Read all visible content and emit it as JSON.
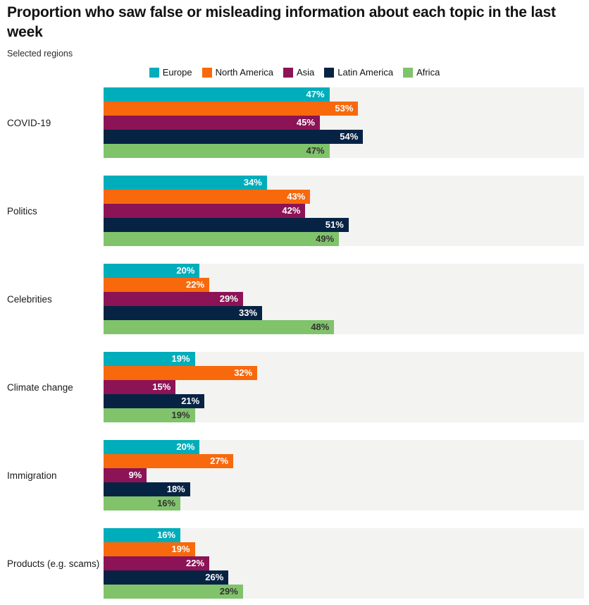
{
  "header": {
    "title": "Proportion who saw false or misleading information about each topic in the last week",
    "subtitle": "Selected regions"
  },
  "colors": {
    "plot_band_background": "#f3f3f1",
    "page_background": "#ffffff",
    "title_text": "#111111",
    "category_label_text": "#1a1a1a",
    "bar_label_light": "#ffffff",
    "bar_label_dark": "#333333"
  },
  "chart_data": {
    "type": "bar",
    "orientation": "horizontal",
    "title": "Proportion who saw false or misleading information about each topic in the last week",
    "subtitle": "Selected regions",
    "xlabel": "",
    "ylabel": "",
    "xlim": [
      0,
      100
    ],
    "value_suffix": "%",
    "grid": false,
    "legend_position": "top-center",
    "categories": [
      "COVID-19",
      "Politics",
      "Celebrities",
      "Climate change",
      "Immigration",
      "Products (e.g. scams)"
    ],
    "series": [
      {
        "name": "Europe",
        "color": "#00adba",
        "label_color": "#ffffff",
        "values": [
          47,
          34,
          20,
          19,
          20,
          16
        ]
      },
      {
        "name": "North America",
        "color": "#f8690d",
        "label_color": "#ffffff",
        "values": [
          53,
          43,
          22,
          32,
          27,
          19
        ]
      },
      {
        "name": "Asia",
        "color": "#8b1356",
        "label_color": "#ffffff",
        "values": [
          45,
          42,
          29,
          15,
          9,
          22
        ]
      },
      {
        "name": "Latin America",
        "color": "#072344",
        "label_color": "#ffffff",
        "values": [
          54,
          51,
          33,
          21,
          18,
          26
        ]
      },
      {
        "name": "Africa",
        "color": "#80c36b",
        "label_color": "#333333",
        "values": [
          47,
          49,
          48,
          19,
          16,
          29
        ]
      }
    ]
  }
}
